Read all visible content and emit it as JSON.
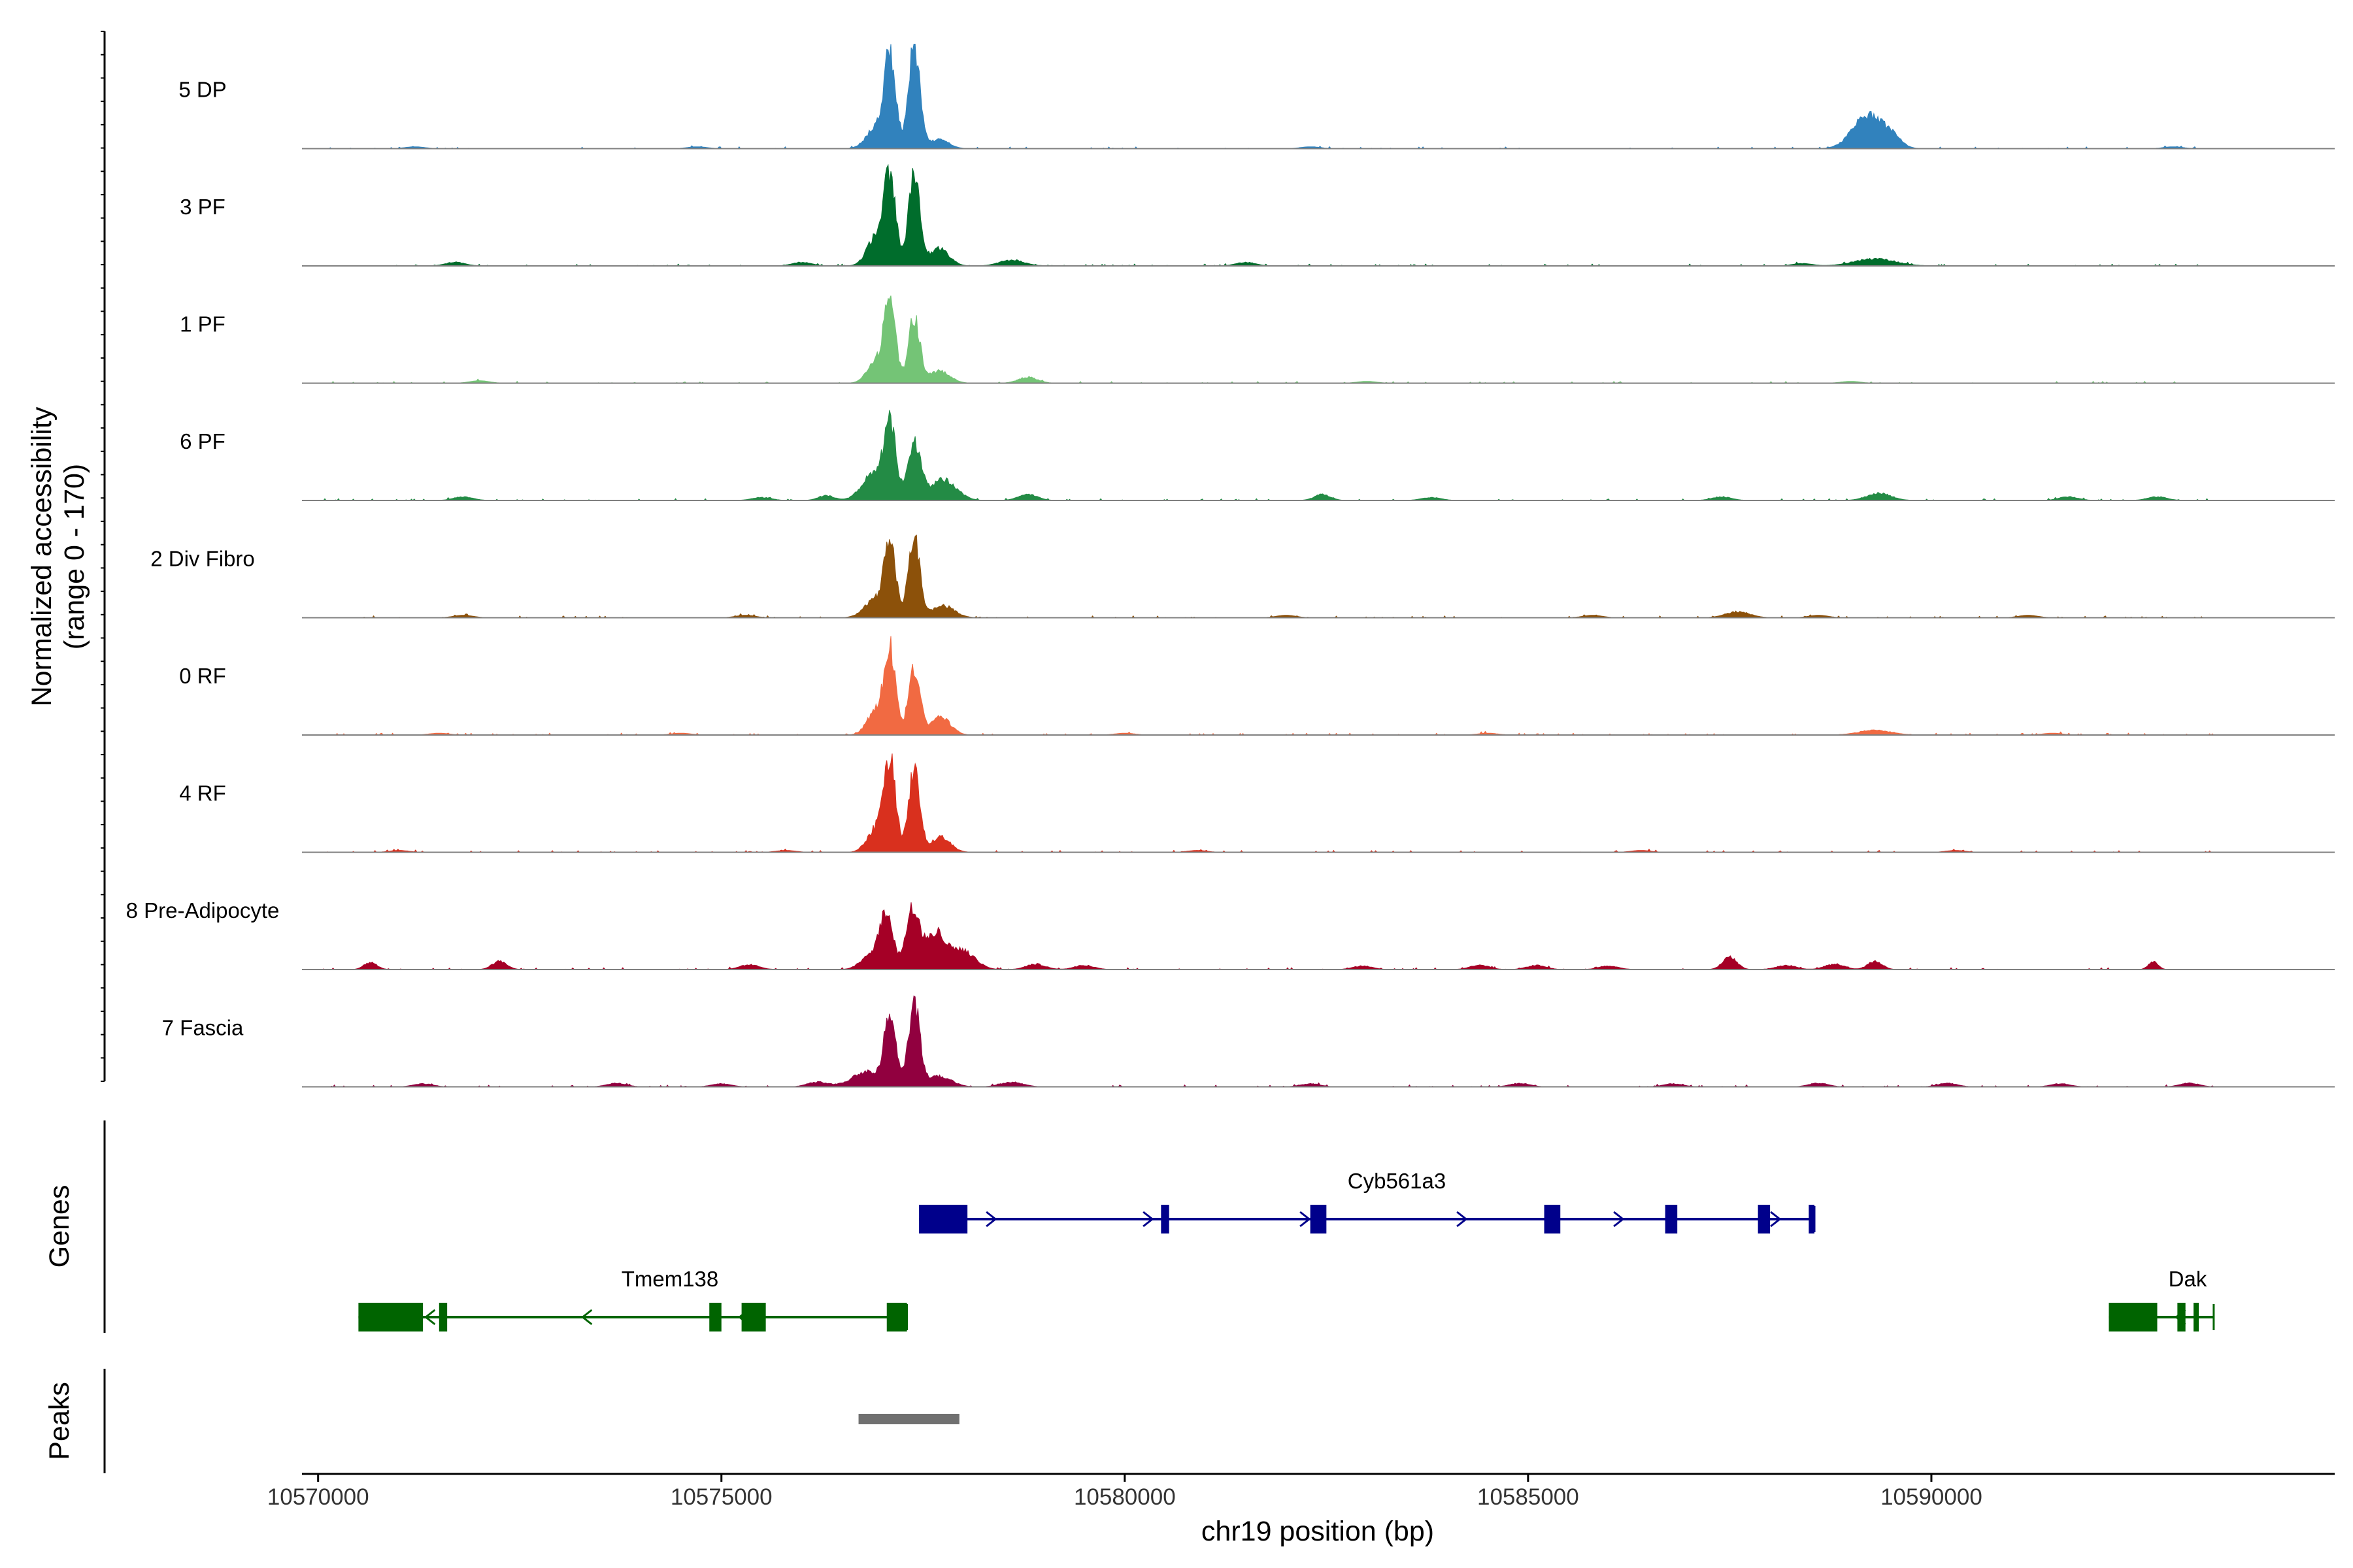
{
  "chart_data": {
    "type": "area",
    "title": "",
    "ylabel": "Normalized accessibility (range 0 - 170)",
    "ylabel_lines": [
      "Normalized accessibility",
      "(range 0 - 170)"
    ],
    "ylim": [
      0,
      170
    ],
    "xlabel": "chr19 position (bp)",
    "xlim": [
      10569800,
      10595000
    ],
    "x_ticks": [
      10570000,
      10575000,
      10580000,
      10585000,
      10590000
    ],
    "x_tick_labels": [
      "10570000",
      "10575000",
      "10580000",
      "10585000",
      "10590000"
    ],
    "series": [
      {
        "name": "5 DP",
        "color": "#3182BD",
        "peaks": [
          [
            10577090,
            150,
            70
          ],
          [
            10577390,
            170,
            70
          ],
          [
            10576920,
            35,
            120
          ],
          [
            10577700,
            15,
            120
          ],
          [
            10589200,
            55,
            180
          ],
          [
            10589500,
            18,
            120
          ]
        ],
        "noise": [
          [
            10571200,
            3
          ],
          [
            10574700,
            3
          ],
          [
            10582300,
            3
          ],
          [
            10593000,
            3
          ]
        ]
      },
      {
        "name": "3 PF",
        "color": "#006D2C",
        "peaks": [
          [
            10577090,
            145,
            70
          ],
          [
            10577390,
            150,
            70
          ],
          [
            10576920,
            50,
            110
          ],
          [
            10577700,
            30,
            120
          ],
          [
            10578600,
            10,
            150
          ],
          [
            10589300,
            12,
            250
          ]
        ],
        "noise": [
          [
            10571700,
            6
          ],
          [
            10576000,
            6
          ],
          [
            10581500,
            6
          ],
          [
            10588400,
            4
          ]
        ]
      },
      {
        "name": "1 PF",
        "color": "#74C476",
        "peaks": [
          [
            10577090,
            135,
            70
          ],
          [
            10577390,
            110,
            70
          ],
          [
            10576920,
            35,
            110
          ],
          [
            10577700,
            20,
            130
          ],
          [
            10578800,
            10,
            120
          ]
        ],
        "noise": [
          [
            10572000,
            4
          ],
          [
            10583000,
            3
          ],
          [
            10589000,
            3
          ]
        ]
      },
      {
        "name": "6 PF",
        "color": "#238B45",
        "peaks": [
          [
            10577090,
            120,
            70
          ],
          [
            10577390,
            95,
            80
          ],
          [
            10576900,
            45,
            150
          ],
          [
            10577750,
            35,
            160
          ],
          [
            10576300,
            8,
            100
          ],
          [
            10578800,
            10,
            120
          ],
          [
            10582450,
            10,
            100
          ],
          [
            10589350,
            12,
            150
          ]
        ],
        "noise": [
          [
            10571800,
            6
          ],
          [
            10575500,
            5
          ],
          [
            10583800,
            5
          ],
          [
            10587400,
            6
          ],
          [
            10591700,
            6
          ],
          [
            10592800,
            6
          ]
        ]
      },
      {
        "name": "2 Div Fibro",
        "color": "#8C510A",
        "peaks": [
          [
            10577090,
            125,
            70
          ],
          [
            10577390,
            135,
            70
          ],
          [
            10576900,
            30,
            130
          ],
          [
            10577750,
            20,
            140
          ],
          [
            10587600,
            10,
            150
          ]
        ],
        "noise": [
          [
            10571800,
            4
          ],
          [
            10575300,
            4
          ],
          [
            10582000,
            4
          ],
          [
            10585800,
            4
          ],
          [
            10588600,
            4
          ],
          [
            10591200,
            4
          ]
        ]
      },
      {
        "name": "0 RF",
        "color": "#F16A42",
        "peaks": [
          [
            10577090,
            135,
            70
          ],
          [
            10577390,
            115,
            70
          ],
          [
            10576920,
            40,
            110
          ],
          [
            10577720,
            30,
            120
          ],
          [
            10589300,
            8,
            200
          ]
        ],
        "noise": [
          [
            10571500,
            3
          ],
          [
            10574500,
            3
          ],
          [
            10580000,
            3
          ],
          [
            10584500,
            3
          ],
          [
            10591500,
            3
          ]
        ]
      },
      {
        "name": "4 RF",
        "color": "#D9301E",
        "peaks": [
          [
            10577090,
            150,
            70
          ],
          [
            10577390,
            140,
            70
          ],
          [
            10576920,
            40,
            110
          ],
          [
            10577720,
            25,
            120
          ]
        ],
        "noise": [
          [
            10571000,
            3
          ],
          [
            10575800,
            3
          ],
          [
            10580900,
            3
          ],
          [
            10586400,
            3
          ],
          [
            10590300,
            3
          ]
        ]
      },
      {
        "name": "8 Pre-Adipocyte",
        "color": "#A50026",
        "peaks": [
          [
            10577050,
            95,
            80
          ],
          [
            10577370,
            95,
            80
          ],
          [
            10577650,
            60,
            140
          ],
          [
            10578000,
            30,
            150
          ],
          [
            10576850,
            25,
            120
          ],
          [
            10570650,
            12,
            80
          ],
          [
            10572250,
            14,
            90
          ],
          [
            10587500,
            20,
            90
          ],
          [
            10589300,
            14,
            90
          ],
          [
            10592750,
            13,
            60
          ]
        ],
        "noise": [
          [
            10575350,
            8
          ],
          [
            10578900,
            9
          ],
          [
            10579500,
            7
          ],
          [
            10582950,
            6
          ],
          [
            10584400,
            7
          ],
          [
            10585100,
            7
          ],
          [
            10586000,
            6
          ],
          [
            10588200,
            7
          ],
          [
            10588800,
            9
          ]
        ]
      },
      {
        "name": "7 Fascia",
        "color": "#91003F",
        "peaks": [
          [
            10577090,
            120,
            70
          ],
          [
            10577390,
            140,
            70
          ],
          [
            10576800,
            25,
            180
          ],
          [
            10577700,
            18,
            150
          ],
          [
            10576200,
            8,
            130
          ],
          [
            10578600,
            8,
            140
          ]
        ],
        "noise": [
          [
            10571300,
            5
          ],
          [
            10573700,
            6
          ],
          [
            10575000,
            5
          ],
          [
            10582300,
            5
          ],
          [
            10584900,
            6
          ],
          [
            10586800,
            5
          ],
          [
            10588600,
            6
          ],
          [
            10590200,
            6
          ],
          [
            10591600,
            5
          ],
          [
            10593200,
            6
          ]
        ]
      }
    ],
    "genes": [
      {
        "name": "Cyb561a3",
        "strand": "+",
        "color": "#00008B",
        "start": 10577450,
        "end": 10588550,
        "exons": [
          [
            10577450,
            10578050
          ],
          [
            10580450,
            10580550
          ],
          [
            10582300,
            10582500
          ],
          [
            10585200,
            10585400
          ],
          [
            10586700,
            10586850
          ],
          [
            10587850,
            10588000
          ],
          [
            10588480,
            10588550
          ]
        ]
      },
      {
        "name": "Tmem138",
        "strand": "-",
        "color": "#006400",
        "start": 10570500,
        "end": 10577300,
        "exons": [
          [
            10570500,
            10571300
          ],
          [
            10571500,
            10571600
          ],
          [
            10574850,
            10575000
          ],
          [
            10575250,
            10575550
          ],
          [
            10577050,
            10577300
          ]
        ]
      },
      {
        "name": "Dak",
        "strand": "-",
        "color": "#006400",
        "start": 10592200,
        "end": 10593500,
        "exons": [
          [
            10592200,
            10592800
          ],
          [
            10593050,
            10593150
          ],
          [
            10593250,
            10593300
          ]
        ]
      }
    ],
    "track_labels": {
      "genes": "Genes",
      "peaks": "Peaks"
    },
    "peaks_track": [
      {
        "start": 10576700,
        "end": 10577950,
        "color": "#707070"
      }
    ]
  }
}
